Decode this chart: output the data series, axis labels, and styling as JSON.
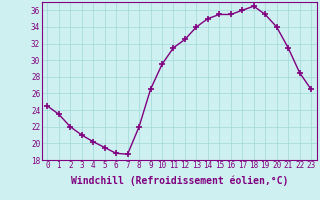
{
  "x": [
    0,
    1,
    2,
    3,
    4,
    5,
    6,
    7,
    8,
    9,
    10,
    11,
    12,
    13,
    14,
    15,
    16,
    17,
    18,
    19,
    20,
    21,
    22,
    23
  ],
  "y": [
    24.5,
    23.5,
    22.0,
    21.0,
    20.2,
    19.5,
    18.8,
    18.7,
    22.0,
    26.5,
    29.5,
    31.5,
    32.5,
    34.0,
    35.0,
    35.5,
    35.5,
    36.0,
    36.5,
    35.5,
    34.0,
    31.5,
    28.5,
    26.5
  ],
  "line_color": "#800080",
  "marker": "+",
  "marker_size": 4,
  "bg_color": "#cff0f0",
  "grid_color": "#a0d8d8",
  "xlabel": "Windchill (Refroidissement éolien,°C)",
  "xlabel_fontsize": 7,
  "ylim": [
    18,
    37
  ],
  "yticks": [
    18,
    20,
    22,
    24,
    26,
    28,
    30,
    32,
    34,
    36
  ],
  "xticks": [
    0,
    1,
    2,
    3,
    4,
    5,
    6,
    7,
    8,
    9,
    10,
    11,
    12,
    13,
    14,
    15,
    16,
    17,
    18,
    19,
    20,
    21,
    22,
    23
  ],
  "tick_fontsize": 5.5,
  "line_width": 1.0
}
